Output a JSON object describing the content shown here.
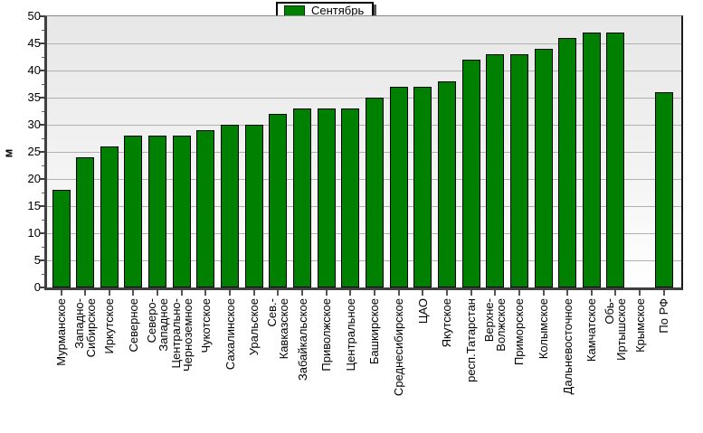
{
  "legend": {
    "series_label": "Сентябрь"
  },
  "y_axis": {
    "title": "м"
  },
  "colors": {
    "bar_fill": "#008000",
    "bar_border": "#000000",
    "gridline": "#b0b0b0",
    "axis": "#404040",
    "plot_bg_top": "#e7e7e7",
    "plot_bg_bottom": "#ffffff",
    "legend_shadow": "#555555"
  },
  "chart_data": {
    "type": "bar",
    "title": "",
    "xlabel": "",
    "ylabel": "м",
    "ylim": [
      0,
      50
    ],
    "ytick_step": 5,
    "ytick_minor_step": 2.5,
    "grid": true,
    "legend_position": "top-center",
    "legend_entries": [
      "Сентябрь"
    ],
    "categories": [
      "Мурманское",
      "Западно-Сибирское",
      "Иркутское",
      "Северное",
      "Северо-Западное",
      "Центрально-Черноземное",
      "Чукотское",
      "Сахалинское",
      "Уральское",
      "Сев.-Кавказское",
      "Забайкальское",
      "Приволжское",
      "Центральное",
      "Башкирское",
      "Среднесибирское",
      "ЦАО",
      "Якутское",
      "респ.Татарстан",
      "Верхне-Волжское",
      "Приморское",
      "Колымское",
      "Дальневосточное",
      "Камчатское",
      "Обь-Иртышское",
      "Крымское",
      "По РФ"
    ],
    "categories_display": [
      [
        "Мурманское"
      ],
      [
        "Западно-",
        "Сибирское"
      ],
      [
        "Иркутское"
      ],
      [
        "Северное"
      ],
      [
        "Северо-",
        "Западное"
      ],
      [
        "Центрально-",
        "Черноземное"
      ],
      [
        "Чукотское"
      ],
      [
        "Сахалинское"
      ],
      [
        "Уральское"
      ],
      [
        "Сев.-",
        "Кавказское"
      ],
      [
        "Забайкальское"
      ],
      [
        "Приволжское"
      ],
      [
        "Центральное"
      ],
      [
        "Башкирское"
      ],
      [
        "Среднесибирское"
      ],
      [
        "ЦАО"
      ],
      [
        "Якутское"
      ],
      [
        "респ.Татарстан"
      ],
      [
        "Верхне-",
        "Волжское"
      ],
      [
        "Приморское"
      ],
      [
        "Колымское"
      ],
      [
        "Дальневосточное"
      ],
      [
        "Камчатское"
      ],
      [
        "Обь-",
        "Иртышское"
      ],
      [
        "Крымское"
      ],
      [
        "По РФ"
      ]
    ],
    "series": [
      {
        "name": "Сентябрь",
        "color": "#008000",
        "values": [
          18,
          24,
          26,
          28,
          28,
          28,
          29,
          30,
          30,
          32,
          33,
          33,
          33,
          35,
          37,
          37,
          38,
          42,
          43,
          43,
          44,
          46,
          47,
          47,
          0,
          36
        ]
      }
    ]
  }
}
